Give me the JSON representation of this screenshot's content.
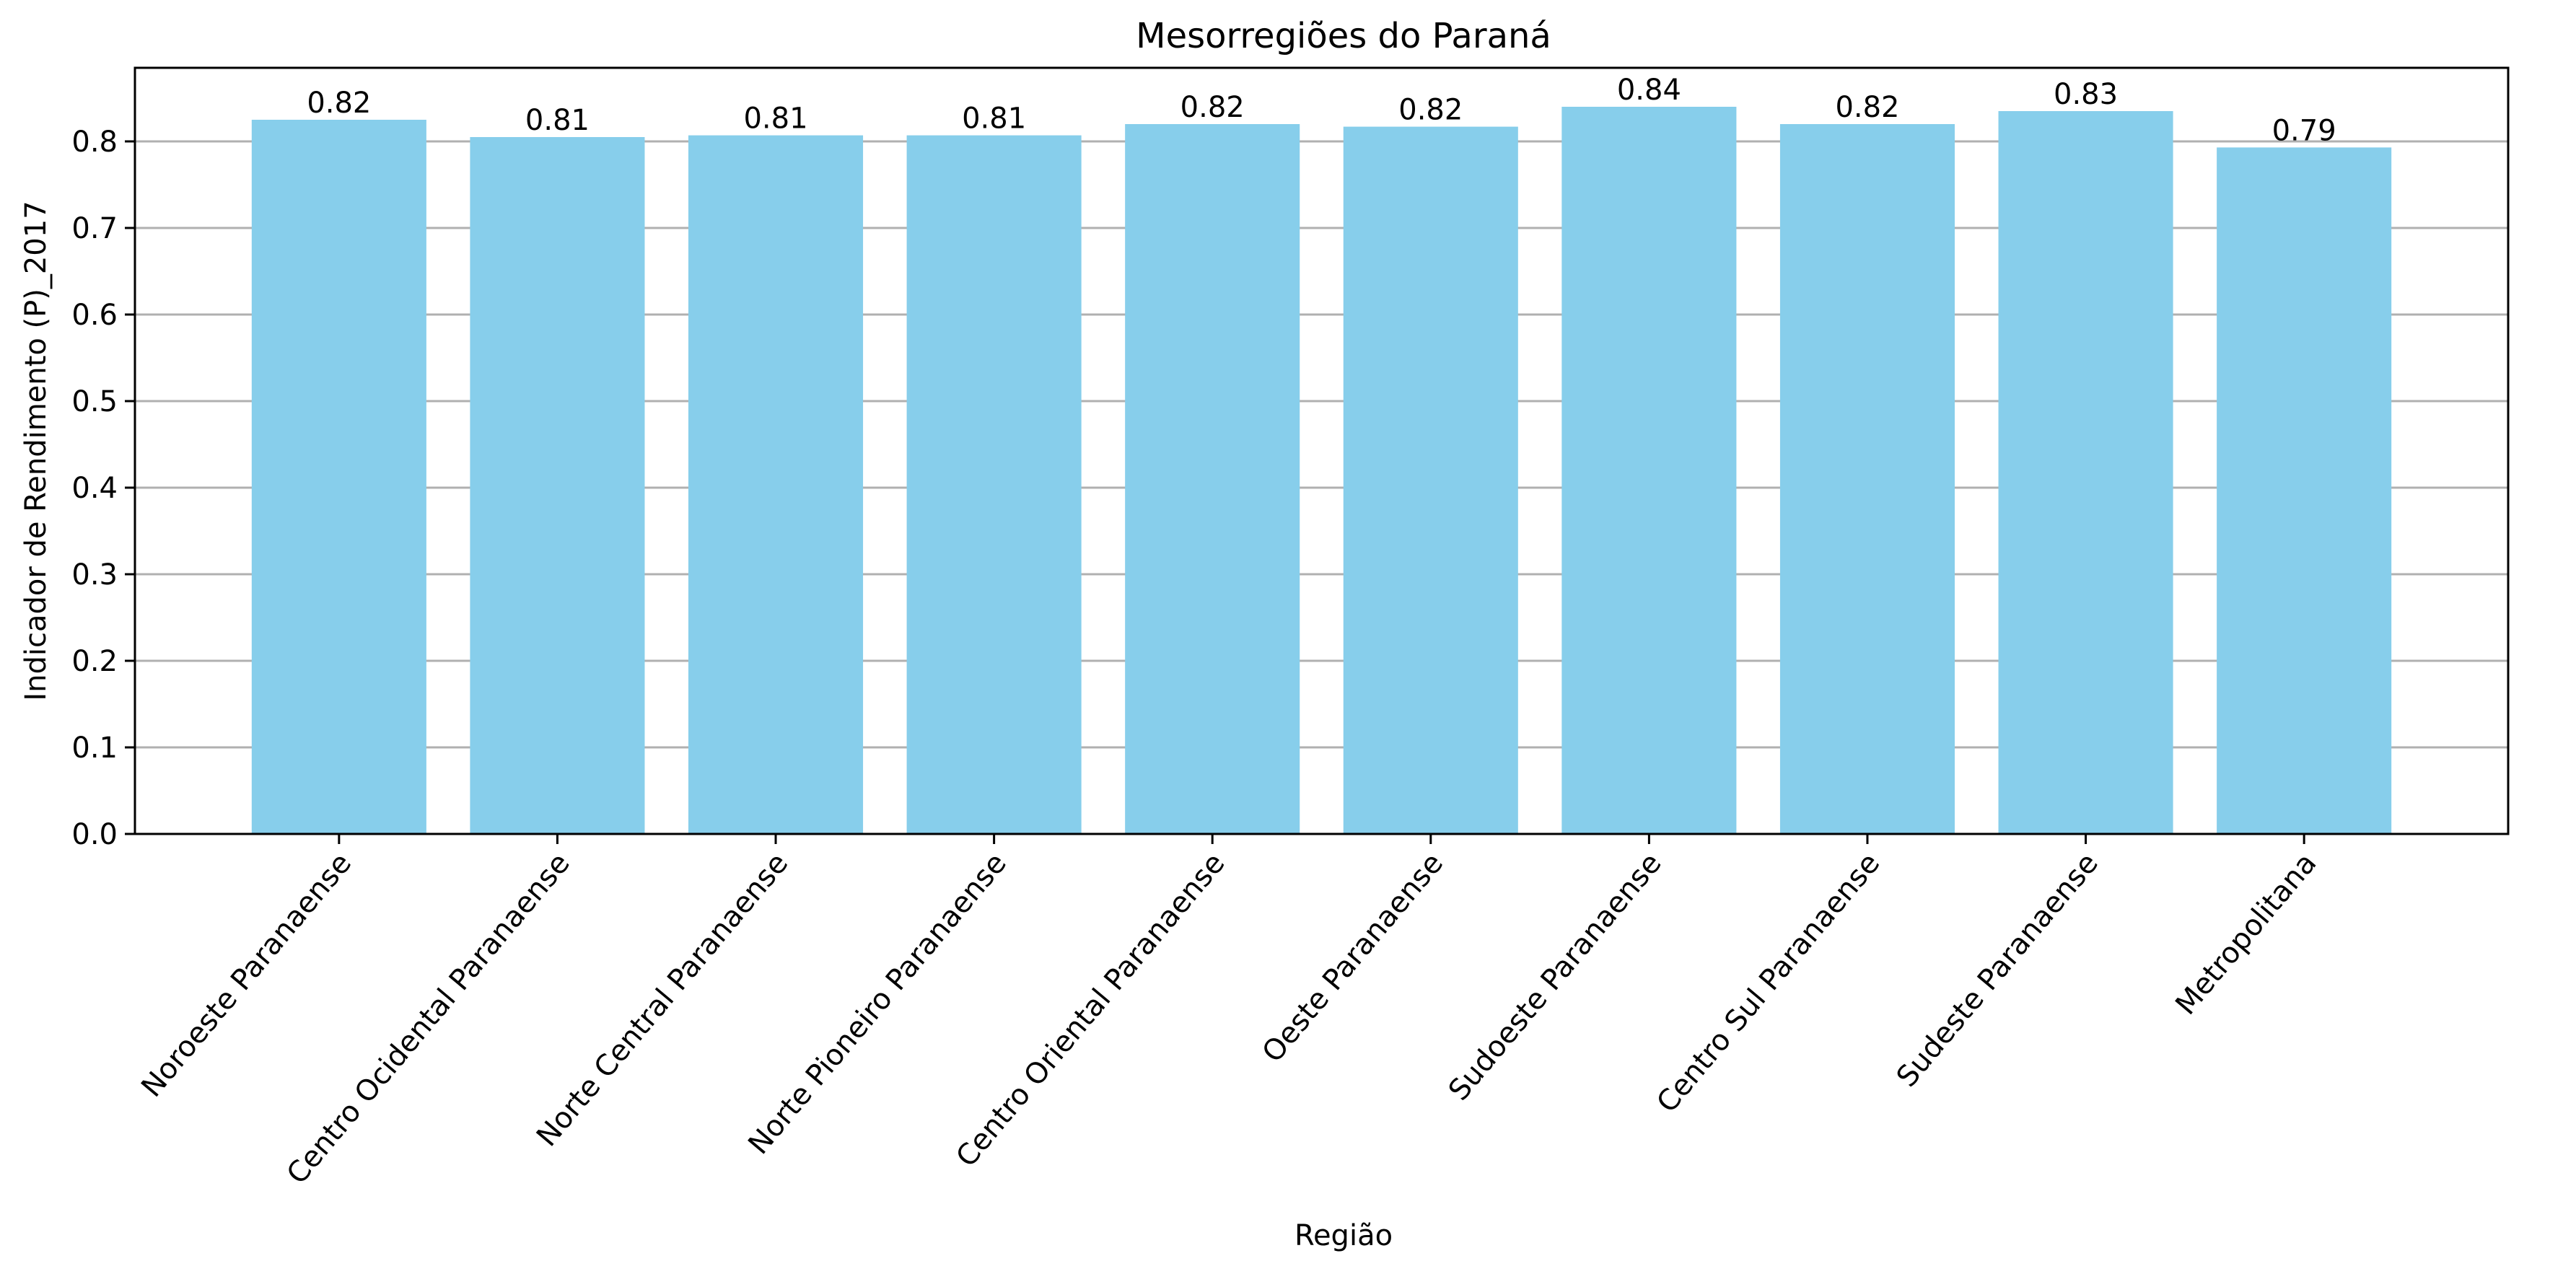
{
  "chart_data": {
    "type": "bar",
    "title": "Mesorregiões do Paraná",
    "xlabel": "Região",
    "ylabel": "Indicador de Rendimento (P)_2017",
    "categories": [
      "Noroeste Paranaense",
      "Centro Ocidental Paranaense",
      "Norte Central Paranaense",
      "Norte Pioneiro Paranaense",
      "Centro Oriental Paranaense",
      "Oeste Paranaense",
      "Sudoeste Paranaense",
      "Centro Sul Paranaense",
      "Sudeste Paranaense",
      "Metropolitana"
    ],
    "values": [
      0.825,
      0.805,
      0.807,
      0.807,
      0.82,
      0.817,
      0.84,
      0.82,
      0.835,
      0.793
    ],
    "data_labels": [
      "0.82",
      "0.81",
      "0.81",
      "0.81",
      "0.82",
      "0.82",
      "0.84",
      "0.82",
      "0.83",
      "0.79"
    ],
    "ylim": [
      0,
      0.885
    ],
    "yticks": [
      0.0,
      0.1,
      0.2,
      0.3,
      0.4,
      0.5,
      0.6,
      0.7,
      0.8
    ],
    "ytick_labels": [
      "0.0",
      "0.1",
      "0.2",
      "0.3",
      "0.4",
      "0.5",
      "0.6",
      "0.7",
      "0.8"
    ],
    "grid": "horizontal",
    "bar_color": "#87CEEB",
    "grid_color": "#b0b0b0"
  }
}
